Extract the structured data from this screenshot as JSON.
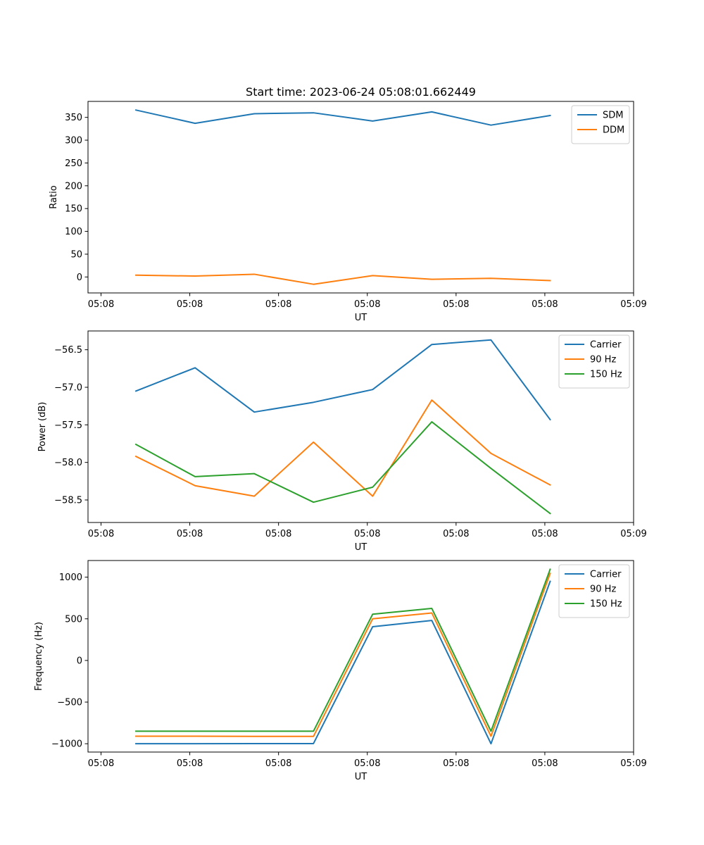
{
  "title": "Start time: 2023-06-24 05:08:01.662449",
  "chart_data": [
    {
      "type": "line",
      "title": "Start time: 2023-06-24 05:08:01.662449",
      "xlabel": "UT",
      "ylabel": "Ratio",
      "x": [
        1,
        2,
        3,
        4,
        5,
        6,
        7,
        8
      ],
      "xlim": [
        0.19,
        9.41
      ],
      "xticks": [
        0.41,
        1.91,
        3.41,
        4.91,
        6.41,
        7.91,
        9.41
      ],
      "xtick_labels": [
        "05:08",
        "05:08",
        "05:08",
        "05:08",
        "05:08",
        "05:08",
        "05:09"
      ],
      "ylim": [
        -35,
        385
      ],
      "yticks": [
        0,
        50,
        100,
        150,
        200,
        250,
        300,
        350
      ],
      "ytick_labels": [
        "0",
        "50",
        "100",
        "150",
        "200",
        "250",
        "300",
        "350"
      ],
      "legend": "upper right",
      "series": [
        {
          "name": "SDM",
          "color": "#1f77b4",
          "values": [
            366,
            337,
            358,
            360,
            342,
            362,
            333,
            354
          ]
        },
        {
          "name": "DDM",
          "color": "#ff7f0e",
          "values": [
            4,
            2,
            6,
            -16,
            3,
            -5,
            -3,
            -8
          ]
        }
      ]
    },
    {
      "type": "line",
      "xlabel": "UT",
      "ylabel": "Power (dB)",
      "x": [
        1,
        2,
        3,
        4,
        5,
        6,
        7,
        8
      ],
      "xlim": [
        0.19,
        9.41
      ],
      "xticks": [
        0.41,
        1.91,
        3.41,
        4.91,
        6.41,
        7.91,
        9.41
      ],
      "xtick_labels": [
        "05:08",
        "05:08",
        "05:08",
        "05:08",
        "05:08",
        "05:08",
        "05:09"
      ],
      "ylim": [
        -58.8,
        -56.25
      ],
      "yticks": [
        -58.5,
        -58.0,
        -57.5,
        -57.0,
        -56.5
      ],
      "ytick_labels": [
        "−58.5",
        "−58.0",
        "−57.5",
        "−57.0",
        "−56.5"
      ],
      "legend": "upper right",
      "series": [
        {
          "name": "Carrier",
          "color": "#1f77b4",
          "values": [
            -57.05,
            -56.74,
            -57.33,
            -57.2,
            -57.03,
            -56.43,
            -56.37,
            -57.43
          ]
        },
        {
          "name": "90 Hz",
          "color": "#ff7f0e",
          "values": [
            -57.92,
            -58.31,
            -58.45,
            -57.73,
            -58.45,
            -57.17,
            -57.88,
            -58.3
          ]
        },
        {
          "name": "150 Hz",
          "color": "#2ca02c",
          "values": [
            -57.76,
            -58.19,
            -58.15,
            -58.53,
            -58.33,
            -57.46,
            -58.08,
            -58.68
          ]
        }
      ]
    },
    {
      "type": "line",
      "xlabel": "UT",
      "ylabel": "Frequency (Hz)",
      "x": [
        1,
        2,
        3,
        4,
        5,
        6,
        7,
        8
      ],
      "xlim": [
        0.19,
        9.41
      ],
      "xticks": [
        0.41,
        1.91,
        3.41,
        4.91,
        6.41,
        7.91,
        9.41
      ],
      "xtick_labels": [
        "05:08",
        "05:08",
        "05:08",
        "05:08",
        "05:08",
        "05:08",
        "05:09"
      ],
      "ylim": [
        -1100,
        1200
      ],
      "yticks": [
        -1000,
        -500,
        0,
        500,
        1000
      ],
      "ytick_labels": [
        "−1000",
        "−500",
        "0",
        "500",
        "1000"
      ],
      "legend": "upper right",
      "series": [
        {
          "name": "Carrier",
          "color": "#1f77b4",
          "values": [
            -1000,
            -1000,
            -998,
            -998,
            405,
            480,
            -1000,
            950
          ]
        },
        {
          "name": "90 Hz",
          "color": "#ff7f0e",
          "values": [
            -910,
            -910,
            -912,
            -912,
            500,
            570,
            -910,
            1045
          ]
        },
        {
          "name": "150 Hz",
          "color": "#2ca02c",
          "values": [
            -850,
            -850,
            -850,
            -850,
            555,
            625,
            -850,
            1095
          ]
        }
      ]
    }
  ]
}
